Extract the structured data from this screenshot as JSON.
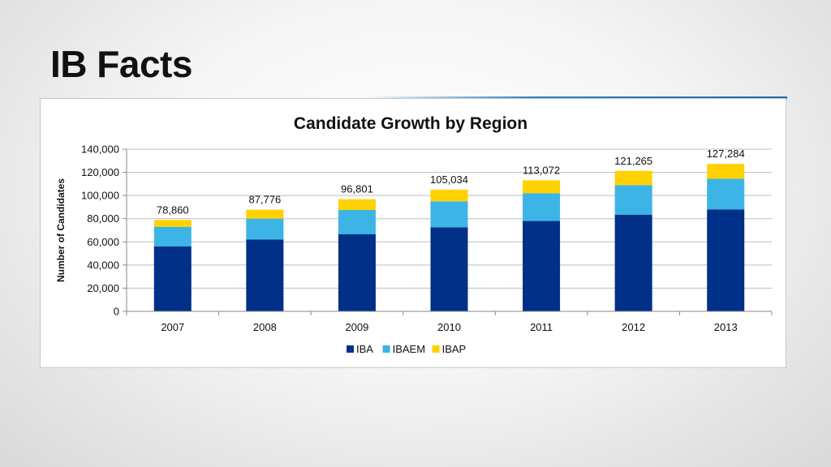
{
  "slide": {
    "title": "IB Facts"
  },
  "chart_data": {
    "type": "bar",
    "stacked": true,
    "title": "Candidate Growth by Region",
    "xlabel": "",
    "ylabel": "Number of Candidates",
    "ylim": [
      0,
      140000
    ],
    "yticks": [
      0,
      20000,
      40000,
      60000,
      80000,
      100000,
      120000,
      140000
    ],
    "ytick_labels": [
      "0",
      "20,000",
      "40,000",
      "60,000",
      "80,000",
      "100,000",
      "120,000",
      "140,000"
    ],
    "grid": true,
    "legend_position": "bottom",
    "categories": [
      "2007",
      "2008",
      "2009",
      "2010",
      "2011",
      "2012",
      "2013"
    ],
    "series": [
      {
        "name": "IBA",
        "color": "#003087",
        "values": [
          56000,
          62000,
          66500,
          72500,
          78000,
          83500,
          88000
        ]
      },
      {
        "name": "IBAEM",
        "color": "#3cb4e5",
        "values": [
          17000,
          18000,
          21000,
          22500,
          24000,
          25500,
          26500
        ]
      },
      {
        "name": "IBAP",
        "color": "#ffd100",
        "values": [
          5860,
          7776,
          9301,
          10034,
          11072,
          12265,
          12784
        ]
      }
    ],
    "totals": [
      78860,
      87776,
      96801,
      105034,
      113072,
      121265,
      127284
    ],
    "total_labels": [
      "78,860",
      "87,776",
      "96,801",
      "105,034",
      "113,072",
      "121,265",
      "127,284"
    ]
  }
}
